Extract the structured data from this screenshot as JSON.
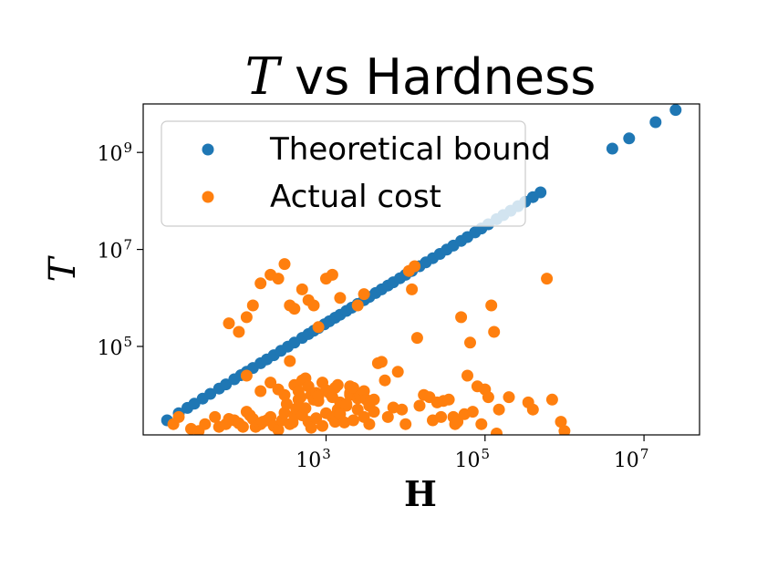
{
  "chart_data": {
    "type": "scatter",
    "title": {
      "variable": "T",
      "text": " vs Hardness"
    },
    "xlabel": "H",
    "ylabel": "T",
    "x_scale": "log",
    "y_scale": "log",
    "xlim": [
      5,
      50000000
    ],
    "ylim": [
      1500,
      10000000000
    ],
    "x_ticks": [
      {
        "value": 1000,
        "label_base": "10",
        "label_exp": "3"
      },
      {
        "value": 100000,
        "label_base": "10",
        "label_exp": "5"
      },
      {
        "value": 10000000,
        "label_base": "10",
        "label_exp": "7"
      }
    ],
    "y_ticks": [
      {
        "value": 100000,
        "label_base": "10",
        "label_exp": "5"
      },
      {
        "value": 10000000,
        "label_base": "10",
        "label_exp": "7"
      },
      {
        "value": 1000000000,
        "label_base": "10",
        "label_exp": "9"
      }
    ],
    "legend": {
      "placement": "upper-left"
    },
    "series": [
      {
        "name": "Theoretical bound",
        "color": "#1f77b4",
        "points": [
          [
            10,
            3000
          ],
          [
            14,
            4200
          ],
          [
            18,
            5400
          ],
          [
            22,
            6600
          ],
          [
            28,
            8400
          ],
          [
            35,
            10500
          ],
          [
            45,
            13500
          ],
          [
            55,
            16500
          ],
          [
            70,
            21000
          ],
          [
            85,
            25500
          ],
          [
            100,
            30000
          ],
          [
            120,
            36000
          ],
          [
            150,
            45000
          ],
          [
            180,
            54000
          ],
          [
            220,
            66000
          ],
          [
            270,
            81000
          ],
          [
            330,
            99000
          ],
          [
            400,
            120000
          ],
          [
            500,
            150000
          ],
          [
            600,
            180000
          ],
          [
            700,
            210000
          ],
          [
            800,
            240000
          ],
          [
            950,
            285000
          ],
          [
            1100,
            330000
          ],
          [
            1300,
            390000
          ],
          [
            1500,
            450000
          ],
          [
            1800,
            540000
          ],
          [
            2100,
            630000
          ],
          [
            2500,
            750000
          ],
          [
            3000,
            900000
          ],
          [
            3500,
            1050000
          ],
          [
            4200,
            1260000
          ],
          [
            5000,
            1500000
          ],
          [
            6000,
            1800000
          ],
          [
            7000,
            2100000
          ],
          [
            8500,
            2550000
          ],
          [
            10000,
            3000000
          ],
          [
            12000,
            3600000
          ],
          [
            15000,
            4500000
          ],
          [
            18000,
            5400000
          ],
          [
            22000,
            6600000
          ],
          [
            27000,
            8100000
          ],
          [
            33000,
            9900000
          ],
          [
            40000,
            12000000
          ],
          [
            50000,
            15000000
          ],
          [
            60000,
            18000000
          ],
          [
            75000,
            22500000
          ],
          [
            90000,
            27000000
          ],
          [
            110000,
            33000000
          ],
          [
            140000,
            42000000
          ],
          [
            170000,
            51000000
          ],
          [
            210000,
            63000000
          ],
          [
            260000,
            78000000
          ],
          [
            320000,
            96000000
          ],
          [
            400000,
            120000000
          ],
          [
            500000,
            150000000
          ],
          [
            4000000,
            1200000000
          ],
          [
            6500000,
            1950000000
          ],
          [
            14000000,
            4200000000
          ],
          [
            25000000,
            7500000000
          ]
        ]
      },
      {
        "name": "Actual cost",
        "color": "#ff7f0e",
        "points": [
          [
            12,
            2500
          ],
          [
            14,
            3500
          ],
          [
            20,
            2000
          ],
          [
            25,
            1800
          ],
          [
            30,
            2500
          ],
          [
            40,
            3500
          ],
          [
            45,
            2200
          ],
          [
            55,
            2500
          ],
          [
            60,
            3200
          ],
          [
            70,
            3000
          ],
          [
            80,
            2600
          ],
          [
            90,
            2200
          ],
          [
            100,
            4500
          ],
          [
            110,
            3800
          ],
          [
            120,
            3200
          ],
          [
            130,
            2200
          ],
          [
            150,
            2500
          ],
          [
            160,
            2800
          ],
          [
            180,
            3000
          ],
          [
            200,
            3500
          ],
          [
            220,
            2300
          ],
          [
            250,
            1900
          ],
          [
            280,
            3000
          ],
          [
            300,
            4300
          ],
          [
            320,
            6500
          ],
          [
            350,
            2500
          ],
          [
            380,
            2700
          ],
          [
            400,
            3800
          ],
          [
            420,
            5200
          ],
          [
            450,
            8000
          ],
          [
            480,
            9000
          ],
          [
            500,
            3800
          ],
          [
            550,
            5300
          ],
          [
            600,
            2800
          ],
          [
            650,
            2100
          ],
          [
            700,
            8000
          ],
          [
            750,
            3300
          ],
          [
            800,
            7500
          ],
          [
            900,
            2300
          ],
          [
            1000,
            4200
          ],
          [
            1200,
            3500
          ],
          [
            1300,
            2800
          ],
          [
            1400,
            5000
          ],
          [
            1500,
            4000
          ],
          [
            1700,
            2700
          ],
          [
            1800,
            6000
          ],
          [
            2000,
            10000
          ],
          [
            2200,
            3000
          ],
          [
            2500,
            5000
          ],
          [
            3000,
            3500
          ],
          [
            3500,
            2500
          ],
          [
            4000,
            8000
          ],
          [
            4500,
            45000
          ],
          [
            5000,
            48000
          ],
          [
            5500,
            20000
          ],
          [
            6000,
            3500
          ],
          [
            7000,
            5500
          ],
          [
            8000,
            30000
          ],
          [
            9000,
            5000
          ],
          [
            10000,
            2500
          ],
          [
            11000,
            3600000
          ],
          [
            12000,
            1500000
          ],
          [
            13000,
            4500000
          ],
          [
            14000,
            150000
          ],
          [
            15000,
            6000
          ],
          [
            17000,
            10000
          ],
          [
            20000,
            9000
          ],
          [
            22000,
            3000
          ],
          [
            25000,
            7000
          ],
          [
            28000,
            3500
          ],
          [
            30000,
            7500
          ],
          [
            35000,
            8000
          ],
          [
            40000,
            3500
          ],
          [
            42000,
            2500
          ],
          [
            45000,
            2800
          ],
          [
            50000,
            400000
          ],
          [
            55000,
            4000
          ],
          [
            60000,
            25000
          ],
          [
            65000,
            120000
          ],
          [
            70000,
            4500
          ],
          [
            80000,
            15000
          ],
          [
            90000,
            2500
          ],
          [
            100000,
            13000
          ],
          [
            110000,
            9000
          ],
          [
            120000,
            700000
          ],
          [
            130000,
            200000
          ],
          [
            140000,
            1600
          ],
          [
            150000,
            5000
          ],
          [
            200000,
            9000
          ],
          [
            350000,
            7000
          ],
          [
            400000,
            5000
          ],
          [
            600000,
            2500000
          ],
          [
            700000,
            8000
          ],
          [
            900000,
            2800
          ],
          [
            1000000,
            1800
          ],
          [
            60,
            300000
          ],
          [
            80,
            200000
          ],
          [
            100,
            400000
          ],
          [
            120,
            700000
          ],
          [
            150,
            2000000
          ],
          [
            200,
            3000000
          ],
          [
            250,
            2500000
          ],
          [
            300,
            5000000
          ],
          [
            350,
            700000
          ],
          [
            400,
            600000
          ],
          [
            500,
            1500000
          ],
          [
            600,
            900000
          ],
          [
            700,
            700000
          ],
          [
            800,
            250000
          ],
          [
            1000,
            2500000
          ],
          [
            1200,
            3000000
          ],
          [
            1500,
            1000000
          ],
          [
            2000,
            15000
          ],
          [
            2500,
            700000
          ],
          [
            3000,
            1200000
          ],
          [
            3500,
            6000
          ],
          [
            4000,
            4500
          ],
          [
            100,
            25000
          ],
          [
            150,
            12000
          ],
          [
            200,
            18000
          ],
          [
            250,
            13000
          ],
          [
            300,
            10000
          ],
          [
            350,
            50000
          ],
          [
            400,
            16000
          ],
          [
            450,
            12000
          ],
          [
            500,
            20000
          ],
          [
            550,
            22000
          ],
          [
            600,
            15000
          ],
          [
            650,
            10000
          ],
          [
            700,
            8000
          ],
          [
            750,
            11000
          ],
          [
            800,
            9500
          ],
          [
            900,
            18000
          ],
          [
            1000,
            12500
          ],
          [
            1100,
            11000
          ],
          [
            1200,
            9000
          ],
          [
            1300,
            14000
          ],
          [
            1400,
            16000
          ],
          [
            1500,
            7000
          ],
          [
            1800,
            6500
          ],
          [
            2000,
            11000
          ],
          [
            2200,
            14000
          ],
          [
            2500,
            8500
          ],
          [
            2700,
            9500
          ],
          [
            3000,
            12000
          ],
          [
            3200,
            8000
          ],
          [
            3500,
            6800
          ]
        ]
      }
    ]
  }
}
